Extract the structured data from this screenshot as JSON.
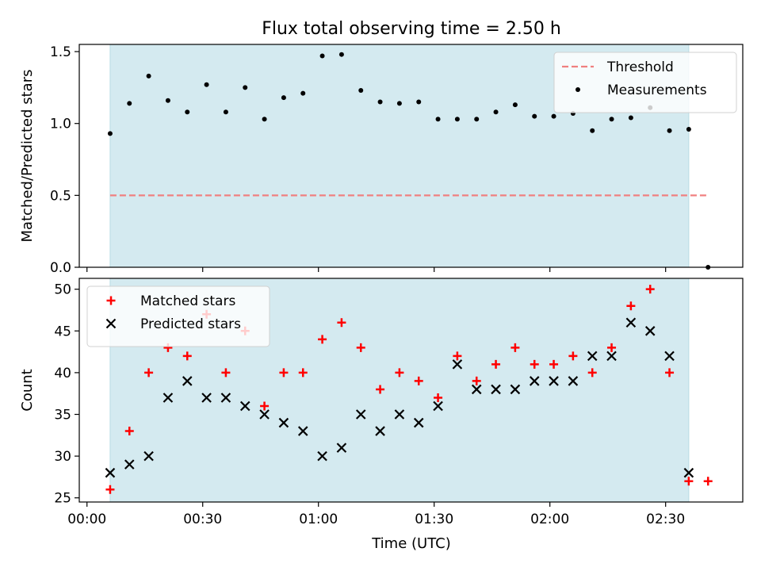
{
  "chart_data": {
    "title": "Flux total observing time = 2.50 h",
    "xlabel": "Time (UTC)",
    "x_unit": "minutes after 00:00 UTC",
    "x_ticks": [
      {
        "value": 0,
        "label": "00:00"
      },
      {
        "value": 30,
        "label": "00:30"
      },
      {
        "value": 60,
        "label": "01:00"
      },
      {
        "value": 90,
        "label": "01:30"
      },
      {
        "value": 120,
        "label": "02:00"
      },
      {
        "value": 150,
        "label": "02:30"
      }
    ],
    "xlim": [
      -2,
      170
    ],
    "observing_window": {
      "start": 6,
      "end": 156,
      "color": "#d4eaf0"
    },
    "panels": [
      {
        "type": "scatter",
        "ylabel": "Matched/Predicted stars",
        "ylim": [
          0,
          1.55
        ],
        "y_ticks": [
          {
            "value": 0,
            "label": "0.0"
          },
          {
            "value": 0.5,
            "label": "0.5"
          },
          {
            "value": 1.0,
            "label": "1.0"
          },
          {
            "value": 1.5,
            "label": "1.5"
          }
        ],
        "legend_position": "top-right",
        "threshold": {
          "name": "Threshold",
          "value": 0.5,
          "x_range": [
            6,
            161
          ],
          "color": "#f08080"
        },
        "series": [
          {
            "name": "Measurements",
            "marker": "dot",
            "color": "#000000",
            "x": [
              6,
              11,
              16,
              21,
              26,
              31,
              36,
              41,
              46,
              51,
              56,
              61,
              66,
              71,
              76,
              81,
              86,
              91,
              96,
              101,
              106,
              111,
              116,
              121,
              126,
              131,
              136,
              141,
              146,
              151,
              156,
              161
            ],
            "y": [
              0.93,
              1.14,
              1.33,
              1.16,
              1.08,
              1.27,
              1.08,
              1.25,
              1.03,
              1.18,
              1.21,
              1.47,
              1.48,
              1.23,
              1.15,
              1.14,
              1.15,
              1.03,
              1.03,
              1.03,
              1.08,
              1.13,
              1.05,
              1.05,
              1.07,
              0.95,
              1.03,
              1.04,
              1.11,
              0.95,
              0.96,
              0.0
            ]
          }
        ]
      },
      {
        "type": "scatter",
        "ylabel": "Count",
        "ylim": [
          24.5,
          51.3
        ],
        "y_ticks": [
          {
            "value": 25,
            "label": "25"
          },
          {
            "value": 30,
            "label": "30"
          },
          {
            "value": 35,
            "label": "35"
          },
          {
            "value": 40,
            "label": "40"
          },
          {
            "value": 45,
            "label": "45"
          },
          {
            "value": 50,
            "label": "50"
          }
        ],
        "legend_position": "top-left",
        "series": [
          {
            "name": "Matched stars",
            "marker": "plus",
            "color": "#ff0000",
            "x": [
              6,
              11,
              16,
              21,
              26,
              31,
              36,
              41,
              46,
              51,
              56,
              61,
              66,
              71,
              76,
              81,
              86,
              91,
              96,
              101,
              106,
              111,
              116,
              121,
              126,
              131,
              136,
              141,
              146,
              151,
              156,
              161
            ],
            "y": [
              26,
              33,
              40,
              43,
              42,
              47,
              40,
              45,
              36,
              40,
              40,
              44,
              46,
              43,
              38,
              40,
              39,
              37,
              42,
              39,
              41,
              43,
              41,
              41,
              42,
              40,
              43,
              48,
              50,
              40,
              27,
              27
            ]
          },
          {
            "name": "Predicted stars",
            "marker": "x",
            "color": "#000000",
            "x": [
              6,
              11,
              16,
              21,
              26,
              31,
              36,
              41,
              46,
              51,
              56,
              61,
              66,
              71,
              76,
              81,
              86,
              91,
              96,
              101,
              106,
              111,
              116,
              121,
              126,
              131,
              136,
              141,
              146,
              151,
              156
            ],
            "y": [
              28,
              29,
              30,
              37,
              39,
              37,
              37,
              36,
              35,
              34,
              33,
              30,
              31,
              35,
              33,
              35,
              34,
              36,
              41,
              38,
              38,
              38,
              39,
              39,
              39,
              42,
              42,
              46,
              45,
              42,
              28
            ]
          }
        ]
      }
    ]
  }
}
